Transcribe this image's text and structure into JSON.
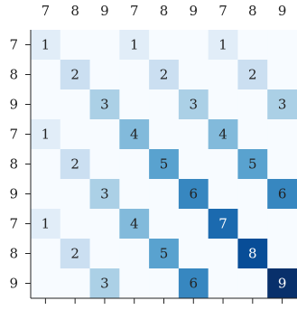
{
  "chart_data": {
    "type": "heatmap",
    "x_categories": [
      "7",
      "8",
      "9",
      "7",
      "8",
      "9",
      "7",
      "8",
      "9"
    ],
    "y_categories": [
      "7",
      "8",
      "9",
      "7",
      "8",
      "9",
      "7",
      "8",
      "9"
    ],
    "values": [
      [
        1,
        0,
        0,
        1,
        0,
        0,
        1,
        0,
        0
      ],
      [
        0,
        2,
        0,
        0,
        2,
        0,
        0,
        2,
        0
      ],
      [
        0,
        0,
        3,
        0,
        0,
        3,
        0,
        0,
        3
      ],
      [
        1,
        0,
        0,
        4,
        0,
        0,
        4,
        0,
        0
      ],
      [
        0,
        2,
        0,
        0,
        5,
        0,
        0,
        5,
        0
      ],
      [
        0,
        0,
        3,
        0,
        0,
        6,
        0,
        0,
        6
      ],
      [
        1,
        0,
        0,
        4,
        0,
        0,
        7,
        0,
        0
      ],
      [
        0,
        2,
        0,
        0,
        5,
        0,
        0,
        8,
        0
      ],
      [
        0,
        0,
        3,
        0,
        0,
        6,
        0,
        0,
        9
      ]
    ],
    "colormap": "Blues",
    "clim": [
      0,
      9
    ]
  }
}
